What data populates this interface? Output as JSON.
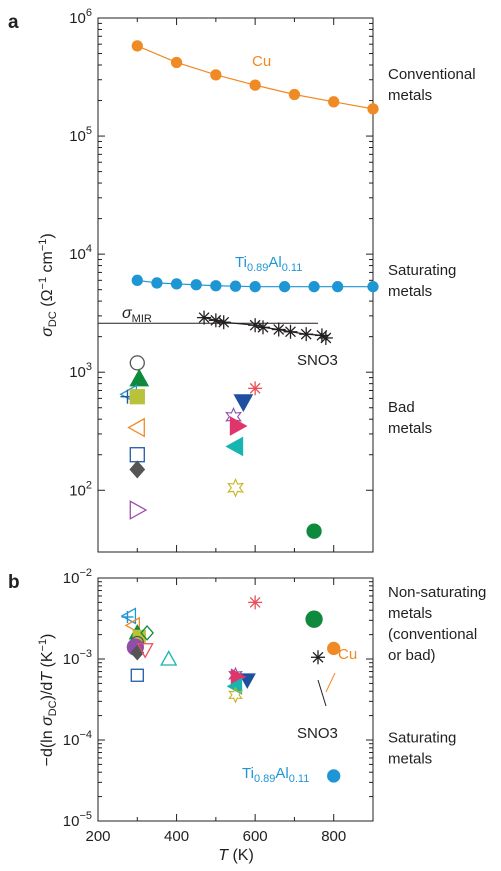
{
  "chart_data": [
    {
      "panel": "a",
      "type": "scatter",
      "xlim": [
        200,
        900
      ],
      "ylim": [
        30,
        1000000
      ],
      "yscale": "log",
      "ylabel": {
        "main": "σ",
        "sub": "DC",
        "units": " (Ω",
        "sup1": "−1",
        "mid": " cm",
        "sup2": "−1",
        "end": ")"
      },
      "yticks": [
        {
          "value": 100,
          "base": "10",
          "exp": "2"
        },
        {
          "value": 1000,
          "base": "10",
          "exp": "3"
        },
        {
          "value": 10000,
          "base": "10",
          "exp": "4"
        },
        {
          "value": 100000,
          "base": "10",
          "exp": "5"
        },
        {
          "value": 1000000,
          "base": "10",
          "exp": "6"
        }
      ],
      "series": [
        {
          "name": "Cu",
          "label_color": "#f08a24",
          "marker": "circle",
          "color": "#f08a24",
          "line": true,
          "x": [
            300,
            400,
            500,
            600,
            700,
            800,
            900
          ],
          "y": [
            580000,
            420000,
            330000,
            270000,
            225000,
            195000,
            170000
          ]
        },
        {
          "name": "Ti0.89Al0.11",
          "label_color": "#1f96d4",
          "marker": "circle",
          "color": "#1f96d4",
          "line": true,
          "x": [
            300,
            350,
            400,
            450,
            500,
            550,
            600,
            675,
            750,
            810,
            900
          ],
          "y": [
            6000,
            5700,
            5600,
            5500,
            5400,
            5350,
            5300,
            5300,
            5300,
            5300,
            5300
          ]
        },
        {
          "name": "SNO3",
          "label_color": "#231f20",
          "marker": "asterisk",
          "color": "#231f20",
          "line": true,
          "x": [
            470,
            500,
            520,
            600,
            620,
            660,
            690,
            730,
            770,
            780
          ],
          "y": [
            2900,
            2750,
            2650,
            2500,
            2400,
            2300,
            2200,
            2100,
            2050,
            1950
          ]
        }
      ],
      "sigma_mir": {
        "symbol": "σ",
        "sub": "MIR",
        "y": 2600,
        "x_range": [
          200,
          760
        ]
      },
      "bad_metals": [
        {
          "x": 300,
          "y": 1200,
          "marker": "circle-open",
          "color": "#555555"
        },
        {
          "x": 305,
          "y": 880,
          "marker": "triangle-up-filled",
          "color": "#0f8a3d"
        },
        {
          "x": 280,
          "y": 650,
          "marker": "tri-left-open",
          "color": "#1f96d4"
        },
        {
          "x": 275,
          "y": 620,
          "marker": "plus",
          "color": "#1f5aa6"
        },
        {
          "x": 300,
          "y": 620,
          "marker": "square-filled",
          "color": "#b8c23a"
        },
        {
          "x": 300,
          "y": 340,
          "marker": "triangle-left-open",
          "color": "#f08a24"
        },
        {
          "x": 300,
          "y": 200,
          "marker": "square-open",
          "color": "#1f5aa6"
        },
        {
          "x": 300,
          "y": 150,
          "marker": "diamond-filled",
          "color": "#555555"
        },
        {
          "x": 300,
          "y": 68,
          "marker": "triangle-right-open",
          "color": "#9b4fa8"
        },
        {
          "x": 600,
          "y": 730,
          "marker": "asterisk",
          "color": "#e8505b"
        },
        {
          "x": 570,
          "y": 560,
          "marker": "triangle-down-filled",
          "color": "#1f4fa0"
        },
        {
          "x": 545,
          "y": 420,
          "marker": "star-open",
          "color": "#8e4fa8"
        },
        {
          "x": 555,
          "y": 350,
          "marker": "triangle-right-filled",
          "color": "#e0356b"
        },
        {
          "x": 550,
          "y": 235,
          "marker": "triangle-left-filled",
          "color": "#17b5b0"
        },
        {
          "x": 550,
          "y": 105,
          "marker": "star-open",
          "color": "#c9b21e"
        },
        {
          "x": 750,
          "y": 45,
          "marker": "circle-filled",
          "color": "#0f8a3d"
        }
      ],
      "categories": [
        {
          "lines": [
            "Conventional",
            "metals"
          ],
          "y": 250000
        },
        {
          "lines": [
            "Saturating",
            "metals"
          ],
          "y": 5500
        },
        {
          "lines": [
            "Bad",
            "metals"
          ],
          "y": 380
        }
      ]
    },
    {
      "panel": "b",
      "type": "scatter",
      "xlim": [
        200,
        900
      ],
      "ylim": [
        1e-05,
        0.01
      ],
      "yscale": "log",
      "xlabel": {
        "italic": "T",
        "rest": " (K)"
      },
      "ylabel": {
        "pre": "−d(ln ",
        "main": "σ",
        "sub": "DC",
        "mid": ")/d",
        "italic": "T",
        "units": " (K",
        "sup": "−1",
        "end": ")"
      },
      "xticks": [
        200,
        400,
        600,
        800
      ],
      "yticks": [
        {
          "value": 1e-05,
          "base": "10",
          "exp": "−5"
        },
        {
          "value": 0.0001,
          "base": "10",
          "exp": "−4"
        },
        {
          "value": 0.001,
          "base": "10",
          "exp": "−3"
        },
        {
          "value": 0.01,
          "base": "10",
          "exp": "−2"
        }
      ],
      "points": [
        {
          "x": 800,
          "y": 0.00135,
          "marker": "circle-filled",
          "color": "#f08a24",
          "label": "Cu"
        },
        {
          "x": 760,
          "y": 0.00105,
          "marker": "asterisk",
          "color": "#231f20",
          "label": "SNO3"
        },
        {
          "x": 800,
          "y": 3.6e-05,
          "marker": "circle-filled",
          "color": "#1f96d4",
          "label": "Ti0.89Al0.11"
        },
        {
          "x": 750,
          "y": 0.0031,
          "marker": "circle-filled",
          "color": "#0f8a3d"
        },
        {
          "x": 600,
          "y": 0.005,
          "marker": "asterisk",
          "color": "#e8505b"
        },
        {
          "x": 580,
          "y": 0.00055,
          "marker": "triangle-down-filled",
          "color": "#1f4fa0"
        },
        {
          "x": 550,
          "y": 0.00063,
          "marker": "star-open",
          "color": "#8e4fa8"
        },
        {
          "x": 555,
          "y": 0.0006,
          "marker": "triangle-right-filled",
          "color": "#e0356b"
        },
        {
          "x": 550,
          "y": 0.00046,
          "marker": "triangle-left-filled",
          "color": "#17b5b0"
        },
        {
          "x": 550,
          "y": 0.00036,
          "marker": "star-open",
          "color": "#c9b21e"
        },
        {
          "x": 280,
          "y": 0.0034,
          "marker": "triangle-left-open",
          "color": "#1f96d4"
        },
        {
          "x": 275,
          "y": 0.0033,
          "marker": "plus",
          "color": "#1f96d4"
        },
        {
          "x": 290,
          "y": 0.0026,
          "marker": "triangle-left-open",
          "color": "#f08a24"
        },
        {
          "x": 300,
          "y": 0.0021,
          "marker": "triangle-up-filled",
          "color": "#0f8a3d"
        },
        {
          "x": 305,
          "y": 0.0019,
          "marker": "square-filled",
          "color": "#b8c23a"
        },
        {
          "x": 325,
          "y": 0.0021,
          "marker": "diamond-open",
          "color": "#0f8a3d"
        },
        {
          "x": 300,
          "y": 0.0016,
          "marker": "circle-open",
          "color": "#555555"
        },
        {
          "x": 295,
          "y": 0.0014,
          "marker": "circle-filled",
          "color": "#8e4fa8"
        },
        {
          "x": 300,
          "y": 0.0012,
          "marker": "diamond-filled",
          "color": "#555555"
        },
        {
          "x": 320,
          "y": 0.0013,
          "marker": "triangle-down-open",
          "color": "#e8505b"
        },
        {
          "x": 300,
          "y": 0.00063,
          "marker": "square-open",
          "color": "#1f5aa6"
        },
        {
          "x": 380,
          "y": 0.001,
          "marker": "triangle-up-open",
          "color": "#17b5b0"
        }
      ],
      "categories": [
        {
          "lines": [
            "Non-saturating",
            "metals",
            "(conventional",
            "or bad)"
          ],
          "y": 0.0025
        },
        {
          "lines": [
            "Saturating",
            "metals"
          ],
          "y": 7e-05
        }
      ]
    }
  ],
  "labels": {
    "panel_a": "a",
    "panel_b": "b",
    "cu": "Cu",
    "sno3": "SNO3",
    "ti_main1": "Ti",
    "ti_sub1": "0.89",
    "ti_main2": "Al",
    "ti_sub2": "0.11"
  }
}
